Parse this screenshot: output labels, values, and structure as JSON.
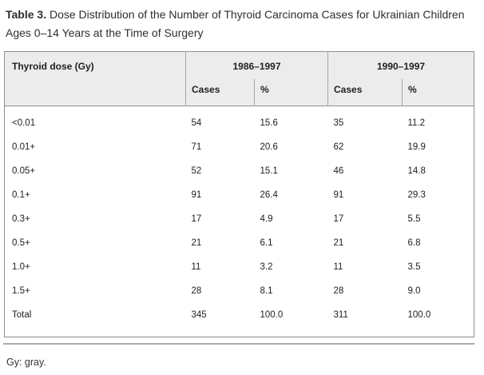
{
  "title": {
    "label": "Table 3.",
    "text": " Dose Distribution of the Number of Thyroid Carcinoma Cases for Ukrainian Children Ages 0–14 Years at the Time of Surgery"
  },
  "table": {
    "corner_header": "Thyroid dose (Gy)",
    "groups": [
      {
        "label": "1986–1997"
      },
      {
        "label": "1990–1997"
      }
    ],
    "sub_headers": [
      "Cases",
      "%",
      "Cases",
      "%"
    ],
    "rows": [
      [
        "<0.01",
        "54",
        "15.6",
        "35",
        "11.2"
      ],
      [
        "0.01+",
        "71",
        "20.6",
        "62",
        "19.9"
      ],
      [
        "0.05+",
        "52",
        "15.1",
        "46",
        "14.8"
      ],
      [
        "0.1+",
        "91",
        "26.4",
        "91",
        "29.3"
      ],
      [
        "0.3+",
        "17",
        "4.9",
        "17",
        "5.5"
      ],
      [
        "0.5+",
        "21",
        "6.1",
        "21",
        "6.8"
      ],
      [
        "1.0+",
        "11",
        "3.2",
        "11",
        "3.5"
      ],
      [
        "1.5+",
        "28",
        "8.1",
        "28",
        "9.0"
      ],
      [
        "Total",
        "345",
        "100.0",
        "311",
        "100.0"
      ]
    ],
    "footnote": "Gy: gray."
  },
  "colors": {
    "header_bg": "#ececec",
    "table_border": "#8f8f8f",
    "header_divider": "#a3a3a3",
    "rule": "#adaca2",
    "text": "#2d2d2d"
  }
}
